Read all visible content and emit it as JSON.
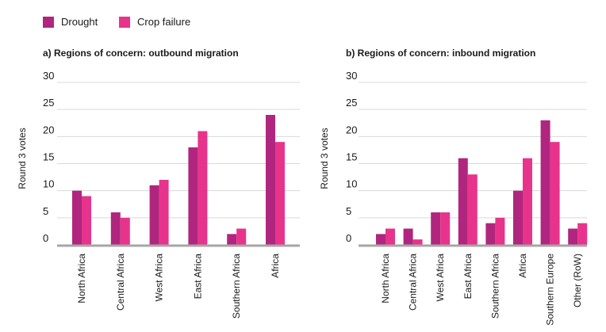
{
  "legend": {
    "items": [
      {
        "label": "Drought",
        "color": "#b0267e"
      },
      {
        "label": "Crop failure",
        "color": "#e8338c"
      }
    ]
  },
  "chart_data": [
    {
      "type": "bar",
      "title": "a) Regions of concern: outbound migration",
      "ylabel": "Round 3 votes",
      "xlabel": "",
      "ylim": [
        0,
        30
      ],
      "yticks": [
        0,
        5,
        10,
        15,
        20,
        25,
        30
      ],
      "grid": true,
      "categories": [
        "North Africa",
        "Central Africa",
        "West Africa",
        "East Africa",
        "Southern Africa",
        "Africa"
      ],
      "series": [
        {
          "name": "Drought",
          "values": [
            10,
            6,
            11,
            18,
            2,
            24
          ]
        },
        {
          "name": "Crop failure",
          "values": [
            9,
            5,
            12,
            21,
            3,
            19
          ]
        }
      ]
    },
    {
      "type": "bar",
      "title": "b) Regions of concern: inbound migration",
      "ylabel": "Round 3 votes",
      "xlabel": "",
      "ylim": [
        0,
        30
      ],
      "yticks": [
        0,
        5,
        10,
        15,
        20,
        25,
        30
      ],
      "grid": true,
      "categories": [
        "North Africa",
        "Central Africa",
        "West Africa",
        "East Africa",
        "Southern Africa",
        "Africa",
        "Southern Europe",
        "Other (RoW)"
      ],
      "series": [
        {
          "name": "Drought",
          "values": [
            2,
            3,
            6,
            16,
            4,
            10,
            23,
            3
          ]
        },
        {
          "name": "Crop failure",
          "values": [
            3,
            1,
            6,
            13,
            5,
            16,
            19,
            4
          ]
        }
      ]
    }
  ]
}
